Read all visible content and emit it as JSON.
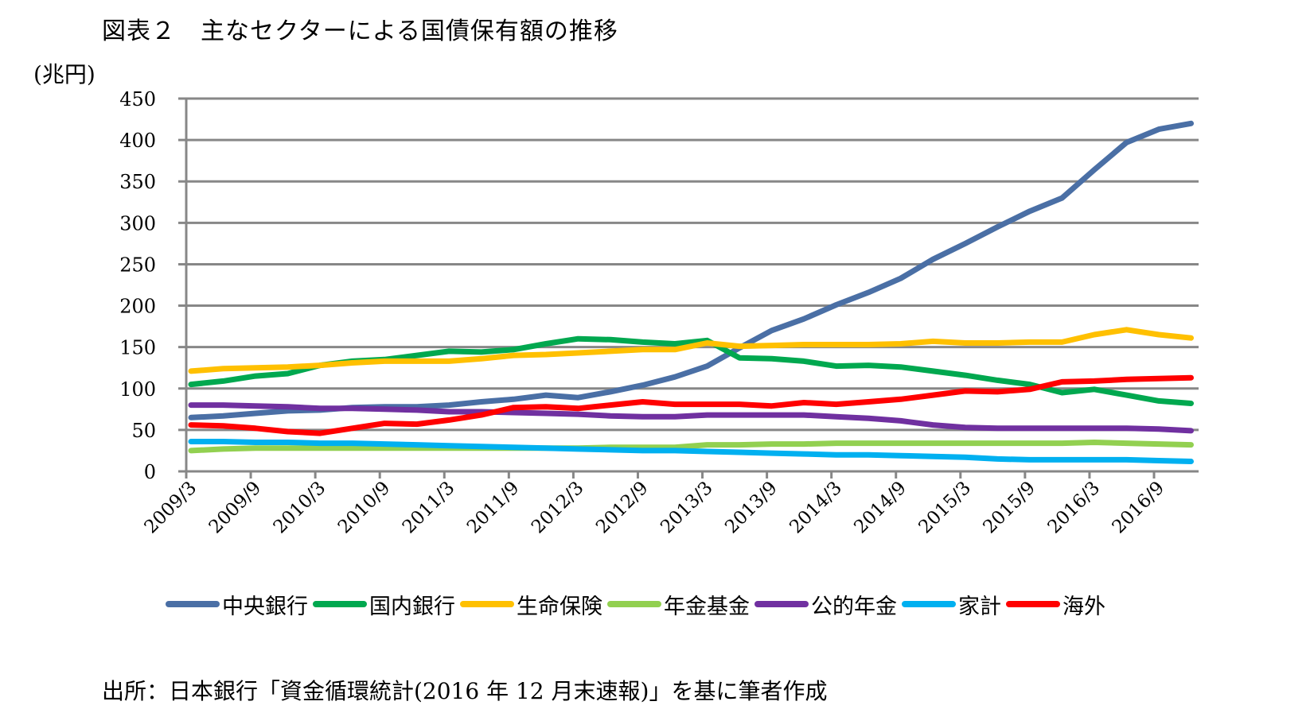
{
  "title": "図表２　主なセクターによる国債保有額の推移",
  "source_note": "出所：日本銀行「資金循環統計(2016 年 12 月末速報)」を基に筆者作成",
  "chart_data": {
    "type": "line",
    "title": "図表２　主なセクターによる国債保有額の推移",
    "ylabel": "(兆円)",
    "xlabel": "",
    "ylim": [
      0,
      450
    ],
    "yticks": [
      "0",
      "50",
      "100",
      "150",
      "200",
      "250",
      "300",
      "350",
      "400",
      "450"
    ],
    "xtick_labels": [
      "2009/3",
      "2009/9",
      "2010/3",
      "2010/9",
      "2011/3",
      "2011/9",
      "2012/3",
      "2012/9",
      "2013/3",
      "2013/9",
      "2014/3",
      "2014/9",
      "2015/3",
      "2015/9",
      "2016/3",
      "2016/9"
    ],
    "x": [
      "2009/3",
      "2009/6",
      "2009/9",
      "2009/12",
      "2010/3",
      "2010/6",
      "2010/9",
      "2010/12",
      "2011/3",
      "2011/6",
      "2011/9",
      "2011/12",
      "2012/3",
      "2012/6",
      "2012/9",
      "2012/12",
      "2013/3",
      "2013/6",
      "2013/9",
      "2013/12",
      "2014/3",
      "2014/6",
      "2014/9",
      "2014/12",
      "2015/3",
      "2015/6",
      "2015/9",
      "2015/12",
      "2016/3",
      "2016/6",
      "2016/9",
      "2016/12"
    ],
    "grid": true,
    "legend_position": "bottom",
    "series": [
      {
        "name": "中央銀行",
        "color": "#4A6FA5",
        "values": [
          65,
          67,
          70,
          73,
          74,
          77,
          78,
          78,
          80,
          84,
          87,
          92,
          89,
          96,
          104,
          114,
          127,
          149,
          170,
          184,
          201,
          216,
          233,
          256,
          275,
          295,
          314,
          330,
          364,
          397,
          413,
          420
        ]
      },
      {
        "name": "国内銀行",
        "color": "#00A84F",
        "values": [
          105,
          109,
          115,
          118,
          128,
          133,
          135,
          140,
          145,
          144,
          147,
          154,
          160,
          159,
          156,
          154,
          158,
          137,
          136,
          133,
          127,
          128,
          126,
          121,
          116,
          110,
          105,
          95,
          99,
          92,
          85,
          82
        ]
      },
      {
        "name": "生命保険",
        "color": "#FFC000",
        "values": [
          121,
          124,
          125,
          126,
          128,
          131,
          133,
          133,
          133,
          136,
          140,
          141,
          143,
          145,
          147,
          147,
          155,
          151,
          152,
          153,
          153,
          153,
          154,
          157,
          155,
          155,
          156,
          156,
          165,
          171,
          165,
          161
        ]
      },
      {
        "name": "年金基金",
        "color": "#92D050",
        "values": [
          25,
          27,
          28,
          28,
          28,
          28,
          28,
          28,
          28,
          28,
          28,
          28,
          28,
          29,
          29,
          29,
          32,
          32,
          33,
          33,
          34,
          34,
          34,
          34,
          34,
          34,
          34,
          34,
          35,
          34,
          33,
          32
        ]
      },
      {
        "name": "公的年金",
        "color": "#7030A0",
        "values": [
          80,
          80,
          79,
          78,
          76,
          76,
          75,
          74,
          72,
          72,
          71,
          70,
          69,
          67,
          66,
          66,
          68,
          68,
          68,
          68,
          66,
          64,
          61,
          56,
          53,
          52,
          52,
          52,
          52,
          52,
          51,
          49
        ]
      },
      {
        "name": "家計",
        "color": "#00B0F0",
        "values": [
          36,
          36,
          35,
          35,
          34,
          34,
          33,
          32,
          31,
          30,
          29,
          28,
          27,
          26,
          25,
          25,
          24,
          23,
          22,
          21,
          20,
          20,
          19,
          18,
          17,
          15,
          14,
          14,
          14,
          14,
          13,
          12
        ]
      },
      {
        "name": "海外",
        "color": "#FF0000",
        "values": [
          56,
          55,
          52,
          48,
          46,
          52,
          58,
          57,
          62,
          68,
          77,
          78,
          76,
          80,
          84,
          81,
          81,
          81,
          79,
          83,
          81,
          84,
          87,
          92,
          97,
          96,
          99,
          108,
          109,
          111,
          112,
          113
        ]
      }
    ]
  }
}
